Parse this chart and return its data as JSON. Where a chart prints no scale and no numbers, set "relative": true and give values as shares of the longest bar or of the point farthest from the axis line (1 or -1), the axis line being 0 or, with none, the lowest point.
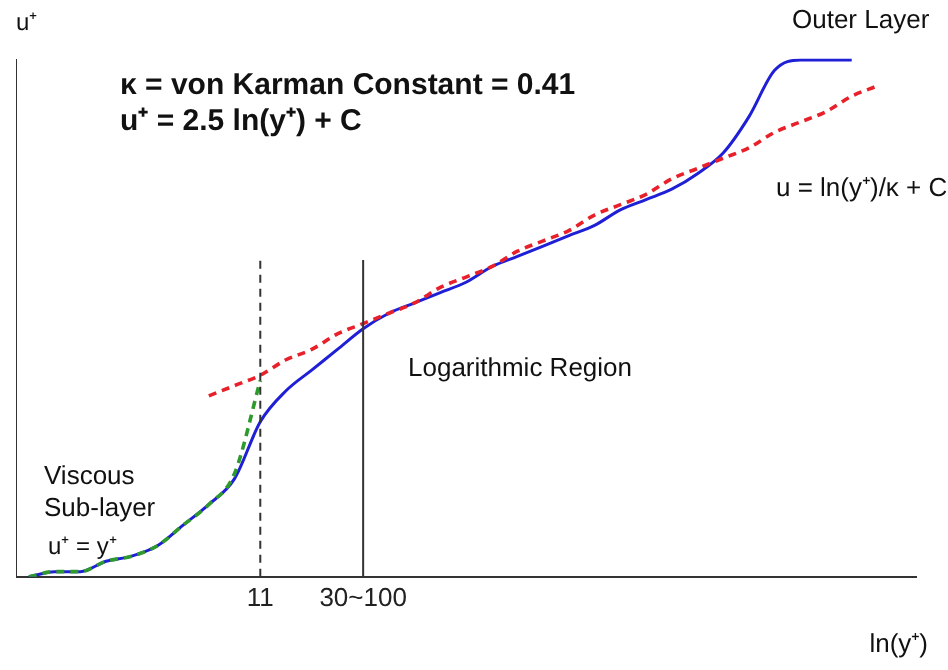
{
  "chart_data": {
    "type": "line",
    "relative": true,
    "xlabel": "ln(y⁺)",
    "ylabel": "u⁺",
    "grid": false,
    "legend": false,
    "marker": "none",
    "categories": [
      null,
      null,
      null,
      null,
      null,
      null,
      null,
      null,
      null,
      "11",
      null,
      null,
      null,
      "30~100",
      null,
      null,
      null,
      null,
      null,
      null,
      null,
      null,
      null,
      null,
      null,
      null,
      null,
      null,
      null,
      null,
      null,
      null,
      null,
      null,
      null
    ],
    "series": [
      {
        "color": "#1f1fd6",
        "line_style": "solid",
        "values": [
          0,
          0.01,
          0.01,
          0.03,
          0.04,
          0.06,
          0.1,
          0.14,
          0.19,
          0.3,
          0.36,
          0.4,
          0.44,
          0.48,
          0.51,
          0.53,
          0.55,
          0.57,
          0.6,
          0.62,
          0.64,
          0.66,
          0.68,
          0.71,
          0.73,
          0.75,
          0.78,
          0.82,
          0.89,
          0.98,
          1,
          1,
          1,
          null,
          null
        ]
      },
      {
        "color": "#e8202a",
        "line_style": "dashed",
        "values": [
          null,
          null,
          null,
          null,
          null,
          null,
          null,
          0.35,
          0.37,
          0.39,
          0.42,
          0.44,
          0.47,
          0.49,
          0.51,
          0.53,
          0.56,
          0.58,
          0.6,
          0.63,
          0.65,
          0.67,
          0.7,
          0.72,
          0.74,
          0.77,
          0.79,
          0.81,
          0.83,
          0.86,
          0.88,
          0.9,
          0.93,
          0.95,
          null
        ]
      },
      {
        "color": "#2e9a2e",
        "line_style": "dashed",
        "values": [
          0,
          0.01,
          0.01,
          0.03,
          0.04,
          0.06,
          0.1,
          0.14,
          0.2,
          0.38,
          null,
          null,
          null,
          null,
          null,
          null,
          null,
          null,
          null,
          null,
          null,
          null,
          null,
          null,
          null,
          null,
          null,
          null,
          null,
          null,
          null,
          null,
          null,
          null,
          null
        ]
      }
    ],
    "ref_lines": [
      {
        "axis": "x",
        "value": "11",
        "line_style": "dashed",
        "color": "#333333"
      },
      {
        "axis": "x",
        "value": "30~100",
        "line_style": "solid",
        "color": "#333333"
      }
    ],
    "annotations": [
      "κ = von Karman Constant = 0.41",
      "u⁺ = 2.5 ln(y⁺) + C",
      "Outer Layer",
      "u = ln(y⁺)/κ + C",
      "Logarithmic Region",
      "Viscous\nSub-layer",
      "u⁺ = y⁺"
    ]
  }
}
